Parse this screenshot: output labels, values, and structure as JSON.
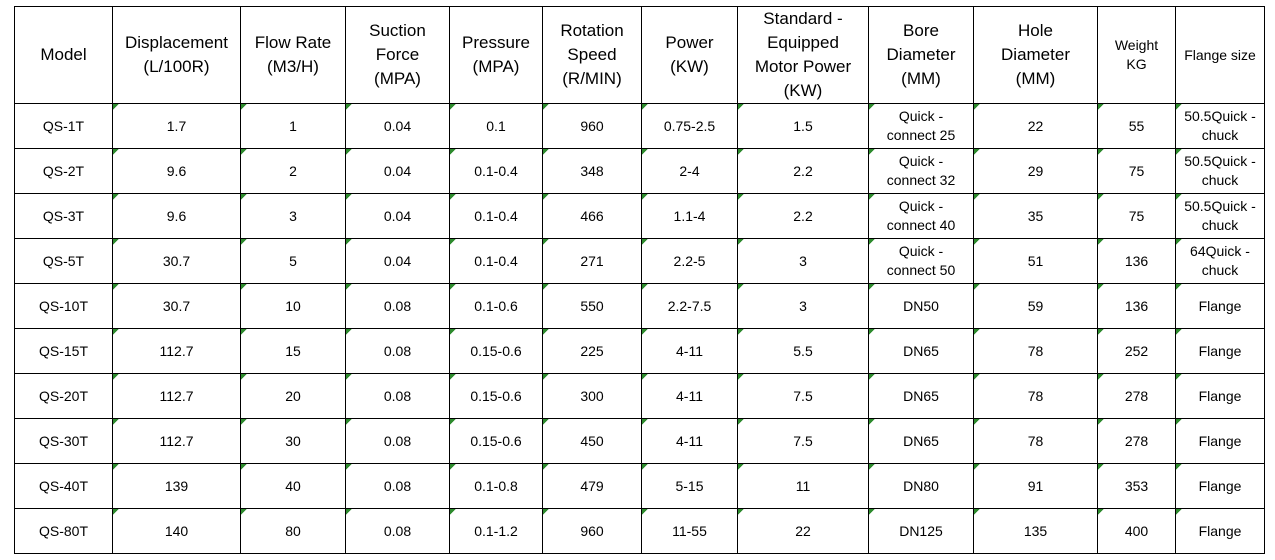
{
  "table": {
    "header": [
      [
        "Model"
      ],
      [
        "Displacement",
        "(L/100R)"
      ],
      [
        "Flow Rate",
        "(M3/H)"
      ],
      [
        "Suction",
        "Force",
        "(MPA)"
      ],
      [
        "Pressure",
        "(MPA)"
      ],
      [
        "Rotation",
        "Speed",
        "(R/MIN)"
      ],
      [
        "Power",
        "(KW)"
      ],
      [
        "Standard -",
        "Equipped",
        "Motor Power",
        "(KW)"
      ],
      [
        "Bore",
        "Diameter",
        "(MM)"
      ],
      [
        "Hole",
        "Diameter",
        "(MM)"
      ],
      [
        "Weight",
        "KG"
      ],
      [
        "Flange size"
      ]
    ],
    "rows": [
      [
        "QS-1T",
        "1.7",
        "1",
        "0.04",
        "0.1",
        "960",
        "0.75-2.5",
        "1.5",
        "Quick - connect 25",
        "22",
        "55",
        "50.5Quick - chuck"
      ],
      [
        "QS-2T",
        "9.6",
        "2",
        "0.04",
        "0.1-0.4",
        "348",
        "2-4",
        "2.2",
        "Quick - connect 32",
        "29",
        "75",
        "50.5Quick - chuck"
      ],
      [
        "QS-3T",
        "9.6",
        "3",
        "0.04",
        "0.1-0.4",
        "466",
        "1.1-4",
        "2.2",
        "Quick - connect 40",
        "35",
        "75",
        "50.5Quick - chuck"
      ],
      [
        "QS-5T",
        "30.7",
        "5",
        "0.04",
        "0.1-0.4",
        "271",
        "2.2-5",
        "3",
        "Quick - connect 50",
        "51",
        "136",
        "64Quick - chuck"
      ],
      [
        "QS-10T",
        "30.7",
        "10",
        "0.08",
        "0.1-0.6",
        "550",
        "2.2-7.5",
        "3",
        "DN50",
        "59",
        "136",
        "Flange"
      ],
      [
        "QS-15T",
        "112.7",
        "15",
        "0.08",
        "0.15-0.6",
        "225",
        "4-11",
        "5.5",
        "DN65",
        "78",
        "252",
        "Flange"
      ],
      [
        "QS-20T",
        "112.7",
        "20",
        "0.08",
        "0.15-0.6",
        "300",
        "4-11",
        "7.5",
        "DN65",
        "78",
        "278",
        "Flange"
      ],
      [
        "QS-30T",
        "112.7",
        "30",
        "0.08",
        "0.15-0.6",
        "450",
        "4-11",
        "7.5",
        "DN65",
        "78",
        "278",
        "Flange"
      ],
      [
        "QS-40T",
        "139",
        "40",
        "0.08",
        "0.1-0.8",
        "479",
        "5-15",
        "11",
        "DN80",
        "91",
        "353",
        "Flange"
      ],
      [
        "QS-80T",
        "140",
        "80",
        "0.08",
        "0.1-1.2",
        "960",
        "11-55",
        "22",
        "DN125",
        "135",
        "400",
        "Flange"
      ]
    ]
  }
}
